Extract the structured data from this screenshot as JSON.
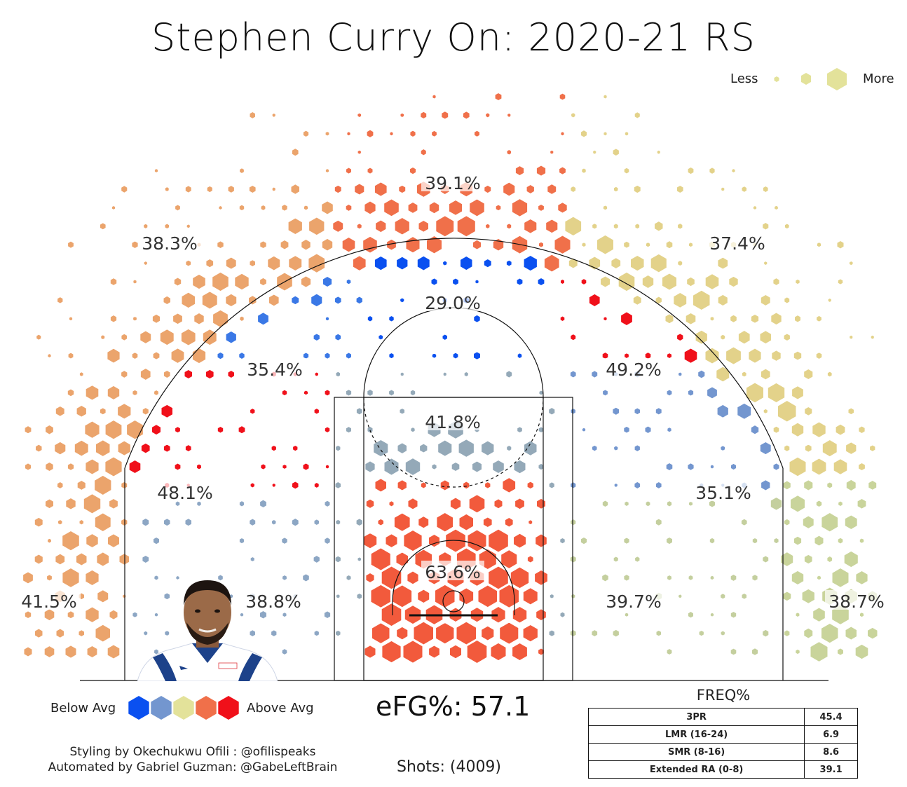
{
  "title": "Stephen Curry On: 2020-21 RS",
  "size_legend": {
    "less": "Less",
    "more": "More",
    "color": "#e3e29a"
  },
  "color_legend": {
    "below": "Below Avg",
    "above": "Above Avg",
    "colors": [
      "#0a50f0",
      "#7396cf",
      "#e3e29a",
      "#f0704a",
      "#f0101a"
    ]
  },
  "efg_label": "eFG%: 57.1",
  "shots_label": "Shots: (4009)",
  "credits": {
    "line1": "Styling by Okechukwu Ofili : @ofilispeaks",
    "line2": "Automated by Gabriel Guzman: @GabeLeftBrain"
  },
  "freq": {
    "title": "FREQ%",
    "rows": [
      {
        "label": "3PR",
        "value": "45.4"
      },
      {
        "label": "LMR (16-24)",
        "value": "6.9"
      },
      {
        "label": "SMR (8-16)",
        "value": "8.6"
      },
      {
        "label": "Extended RA (0-8)",
        "value": "39.1"
      }
    ]
  },
  "chart_data": {
    "type": "hexbin",
    "title": "Stephen Curry On: 2020-21 RS",
    "metric": "FG%",
    "zones": [
      {
        "zone": "Above the break 3 (center)",
        "pct": "39.1%",
        "color": "#f0704a"
      },
      {
        "zone": "Above the break 3 (left wing)",
        "pct": "38.3%",
        "color": "#eba46c"
      },
      {
        "zone": "Above the break 3 (right wing)",
        "pct": "37.4%",
        "color": "#e3d28a"
      },
      {
        "zone": "Mid-range top of key",
        "pct": "29.0%",
        "color": "#0a50f0"
      },
      {
        "zone": "Mid-range left elbow",
        "pct": "35.4%",
        "color": "#3a78e6"
      },
      {
        "zone": "Mid-range right elbow",
        "pct": "49.2%",
        "color": "#f0101a"
      },
      {
        "zone": "Paint (non-RA)",
        "pct": "41.8%",
        "color": "#94a9b8"
      },
      {
        "zone": "Mid-range left baseline",
        "pct": "48.1%",
        "color": "#f0101a"
      },
      {
        "zone": "Mid-range right baseline",
        "pct": "35.1%",
        "color": "#7396cf"
      },
      {
        "zone": "Restricted area",
        "pct": "63.6%",
        "color": "#f25a3c"
      },
      {
        "zone": "Short mid-range left",
        "pct": "38.8%",
        "color": "#8ca6c4"
      },
      {
        "zone": "Short mid-range right",
        "pct": "39.7%",
        "color": "#c4cf9e"
      },
      {
        "zone": "Left corner 3",
        "pct": "41.5%",
        "color": "#eba46c"
      },
      {
        "zone": "Right corner 3",
        "pct": "38.7%",
        "color": "#c9d49b"
      }
    ],
    "shots": 4009,
    "efg": 57.1
  }
}
